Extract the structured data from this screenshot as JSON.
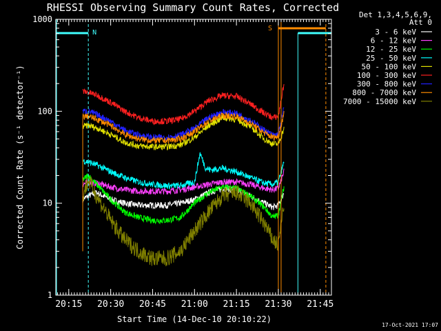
{
  "chart_data": {
    "type": "line",
    "title": "RHESSI Observing Summary Count Rates, Corrected",
    "xlabel": "Start Time (14-Dec-10 20:10:22)",
    "ylabel": "Corrected Count Rate (s⁻¹ detector⁻¹)",
    "footer": "17-Oct-2021 17:07",
    "xlim": [
      "20:10:22",
      "21:49:00"
    ],
    "ylim": [
      1,
      1000
    ],
    "yscale": "log",
    "xticks": [
      "20:15",
      "20:30",
      "20:45",
      "21:00",
      "21:15",
      "21:30",
      "21:45"
    ],
    "yticks": [
      "1",
      "10",
      "100",
      "1000"
    ],
    "legend": {
      "title_lines": [
        "Det 1,3,4,5,6,9,",
        "Att 0"
      ],
      "position": "right"
    },
    "annotations": [
      {
        "text": "N",
        "time": "20:22",
        "color": "#40ffff"
      },
      {
        "text": "S",
        "time": "21:30",
        "color": "#ff8c00"
      }
    ],
    "series": [
      {
        "name": "3 - 6 keV",
        "color": "#ffffff",
        "x": [
          "20:20",
          "20:22",
          "20:25",
          "20:30",
          "20:35",
          "20:40",
          "20:45",
          "20:50",
          "20:55",
          "21:00",
          "21:05",
          "21:10",
          "21:15",
          "21:20",
          "21:25",
          "21:28",
          "21:30",
          "21:32"
        ],
        "values": [
          11,
          12,
          13,
          11,
          10,
          9.5,
          9.5,
          9.5,
          10,
          11,
          13,
          14.5,
          14,
          12,
          10,
          9,
          9.5,
          13
        ]
      },
      {
        "name": "6 - 12 keV",
        "color": "#ff40ff",
        "x": [
          "20:20",
          "20:22",
          "20:25",
          "20:30",
          "20:35",
          "20:40",
          "20:45",
          "20:50",
          "20:55",
          "21:00",
          "21:05",
          "21:10",
          "21:15",
          "21:20",
          "21:25",
          "21:28",
          "21:30",
          "21:32"
        ],
        "values": [
          16,
          17,
          16.5,
          15,
          14,
          13.5,
          13.5,
          13.5,
          14,
          15,
          16,
          17,
          17,
          16,
          14.5,
          14,
          14.5,
          22
        ]
      },
      {
        "name": "12 - 25 keV",
        "color": "#00ff00",
        "x": [
          "20:20",
          "20:22",
          "20:25",
          "20:30",
          "20:35",
          "20:40",
          "20:45",
          "20:50",
          "20:55",
          "21:00",
          "21:05",
          "21:10",
          "21:15",
          "21:20",
          "21:25",
          "21:28",
          "21:30",
          "21:32"
        ],
        "values": [
          18,
          20,
          16,
          11,
          8,
          7,
          6.5,
          6.5,
          7,
          10,
          13,
          15,
          14.5,
          12,
          9,
          7,
          7.5,
          15
        ]
      },
      {
        "name": "25 - 50 keV",
        "color": "#00ffff",
        "x": [
          "20:20",
          "20:22",
          "20:25",
          "20:30",
          "20:35",
          "20:40",
          "20:45",
          "20:50",
          "20:55",
          "21:00",
          "21:02",
          "21:04",
          "21:06",
          "21:10",
          "21:15",
          "21:20",
          "21:25",
          "21:28",
          "21:30",
          "21:32"
        ],
        "values": [
          29,
          28,
          26,
          22,
          19,
          17,
          16,
          15.5,
          15.5,
          17,
          35,
          24,
          23,
          24,
          22,
          19,
          16.5,
          16,
          17,
          28
        ]
      },
      {
        "name": "50 - 100 keV",
        "color": "#e0e000",
        "x": [
          "20:20",
          "20:22",
          "20:25",
          "20:30",
          "20:35",
          "20:40",
          "20:45",
          "20:50",
          "20:55",
          "21:00",
          "21:05",
          "21:10",
          "21:15",
          "21:20",
          "21:25",
          "21:28",
          "21:30",
          "21:32"
        ],
        "values": [
          68,
          70,
          66,
          56,
          46,
          42,
          41,
          41,
          43,
          52,
          70,
          85,
          82,
          68,
          50,
          44,
          44,
          65
        ]
      },
      {
        "name": "100 - 300 keV",
        "color": "#ff2020",
        "x": [
          "20:20",
          "20:22",
          "20:25",
          "20:30",
          "20:35",
          "20:40",
          "20:45",
          "20:50",
          "20:55",
          "21:00",
          "21:05",
          "21:10",
          "21:15",
          "21:20",
          "21:25",
          "21:28",
          "21:30",
          "21:32"
        ],
        "values": [
          165,
          160,
          150,
          125,
          100,
          85,
          78,
          78,
          82,
          100,
          130,
          148,
          145,
          120,
          95,
          85,
          88,
          200
        ]
      },
      {
        "name": "300 - 800 keV",
        "color": "#2020ff",
        "x": [
          "20:20",
          "20:22",
          "20:25",
          "20:30",
          "20:35",
          "20:40",
          "20:45",
          "20:50",
          "20:55",
          "21:00",
          "21:05",
          "21:10",
          "21:15",
          "21:20",
          "21:25",
          "21:28",
          "21:30",
          "21:32"
        ],
        "values": [
          100,
          100,
          92,
          78,
          62,
          55,
          52,
          52,
          55,
          65,
          85,
          98,
          95,
          80,
          62,
          55,
          56,
          110
        ]
      },
      {
        "name": "800 - 7000 keV",
        "color": "#ff8c00",
        "x": [
          "20:20",
          "20:22",
          "20:25",
          "20:30",
          "20:35",
          "20:40",
          "20:45",
          "20:50",
          "20:55",
          "21:00",
          "21:05",
          "21:10",
          "21:15",
          "21:20",
          "21:25",
          "21:28",
          "21:30",
          "21:32"
        ],
        "values": [
          88,
          88,
          82,
          70,
          56,
          50,
          48,
          48,
          50,
          60,
          78,
          90,
          88,
          74,
          58,
          52,
          53,
          95
        ]
      },
      {
        "name": "7000 - 15000 keV",
        "color": "#808000",
        "x": [
          "20:20",
          "20:22",
          "20:25",
          "20:30",
          "20:35",
          "20:40",
          "20:45",
          "20:50",
          "20:55",
          "21:00",
          "21:05",
          "21:10",
          "21:15",
          "21:20",
          "21:25",
          "21:28",
          "21:30",
          "21:32"
        ],
        "values": [
          12,
          18,
          12,
          6.5,
          4,
          3,
          2.5,
          2.5,
          3,
          5,
          8,
          12,
          13,
          10,
          6,
          4,
          3.5,
          10
        ]
      }
    ]
  }
}
